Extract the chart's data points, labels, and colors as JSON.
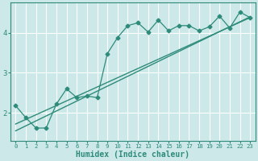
{
  "title": "",
  "xlabel": "Humidex (Indice chaleur)",
  "bg_color": "#cce8e8",
  "grid_color": "#ffffff",
  "line_color": "#2e8b7a",
  "xlim": [
    -0.5,
    23.5
  ],
  "ylim": [
    1.3,
    4.75
  ],
  "xticks": [
    0,
    1,
    2,
    3,
    4,
    5,
    6,
    7,
    8,
    9,
    10,
    11,
    12,
    13,
    14,
    15,
    16,
    17,
    18,
    19,
    20,
    21,
    22,
    23
  ],
  "yticks": [
    2,
    3,
    4
  ],
  "scatter_x": [
    0,
    1,
    2,
    3,
    4,
    5,
    6,
    7,
    8,
    9,
    10,
    11,
    12,
    13,
    14,
    15,
    16,
    17,
    18,
    19,
    20,
    21,
    22,
    23
  ],
  "scatter_y": [
    2.18,
    1.88,
    1.62,
    1.62,
    2.22,
    2.6,
    2.38,
    2.42,
    2.38,
    3.48,
    3.88,
    4.18,
    4.25,
    4.02,
    4.32,
    4.05,
    4.18,
    4.18,
    4.05,
    4.15,
    4.42,
    4.12,
    4.52,
    4.38
  ],
  "line1_x": [
    0,
    23
  ],
  "line1_y": [
    1.55,
    4.4
  ],
  "line2_x": [
    0,
    23
  ],
  "line2_y": [
    1.72,
    4.38
  ]
}
